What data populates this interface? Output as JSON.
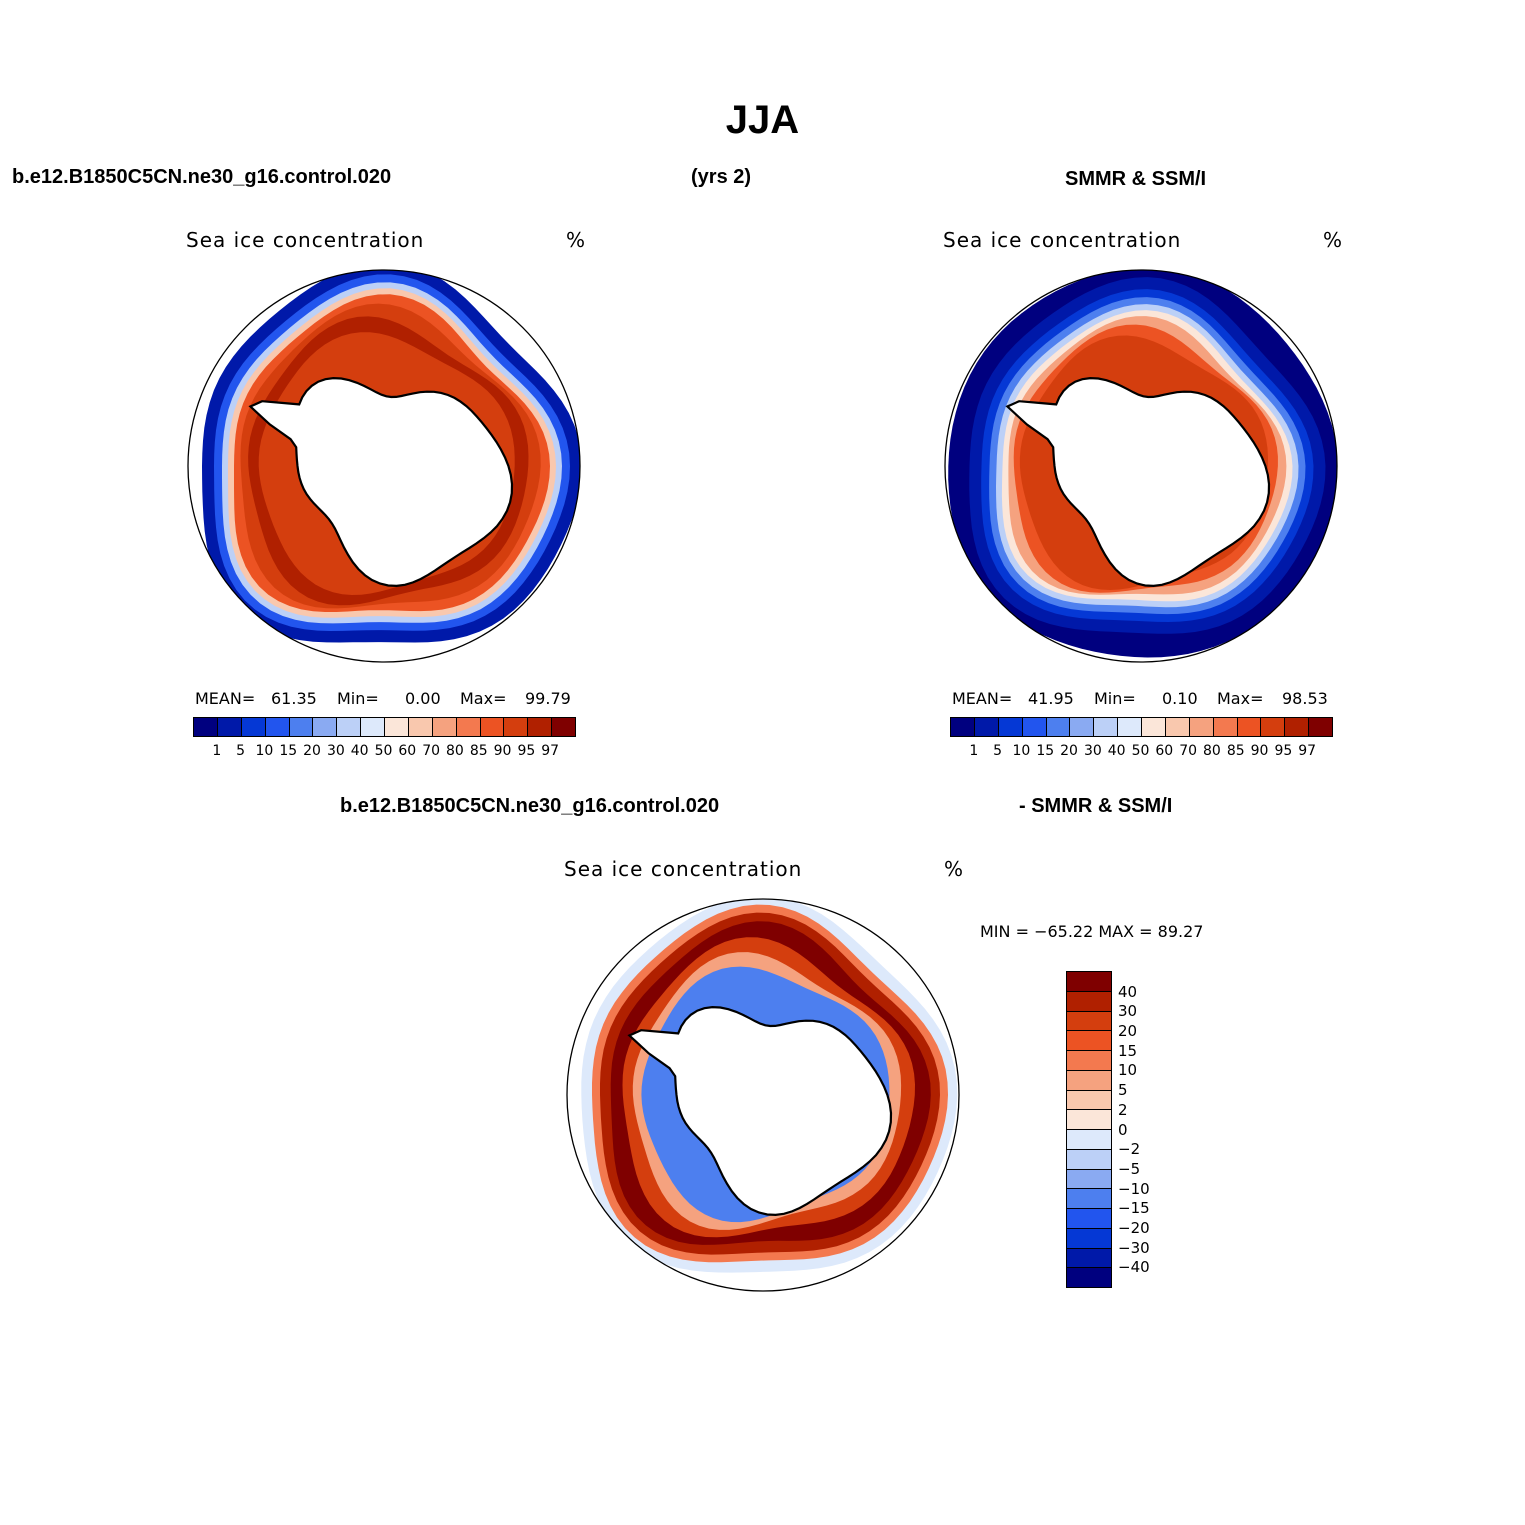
{
  "figure": {
    "title": "JJA",
    "case_label": "b.e12.B1850C5CN.ne30_g16.control.020",
    "years_label": "(yrs 2)",
    "obs_label": "SMMR & SSM/I",
    "diff_case_label": "b.e12.B1850C5CN.ne30_g16.control.020",
    "diff_obs_label": "- SMMR & SSM/I"
  },
  "chart_data": [
    {
      "type": "heatmap",
      "projection": "south-polar-stereographic",
      "title": "Sea ice concentration",
      "units": "%",
      "stats": {
        "mean_label": "MEAN=",
        "mean": "61.35",
        "min_label": "Min=",
        "min": "0.00",
        "max_label": "Max=",
        "max": "99.79"
      },
      "levels": [
        "1",
        "5",
        "10",
        "15",
        "20",
        "30",
        "40",
        "50",
        "60",
        "70",
        "80",
        "85",
        "90",
        "95",
        "97"
      ],
      "colors": [
        "#00007f",
        "#0019a9",
        "#0538d5",
        "#2255ee",
        "#4d7fef",
        "#8aaaf2",
        "#bcd0f7",
        "#dde9fb",
        "#fbe6d9",
        "#f9c8ae",
        "#f5a27f",
        "#f3794f",
        "#ec5323",
        "#d43e0e",
        "#b02000",
        "#7f0000"
      ],
      "ice_edge_ring": "model",
      "description": "Model ice band extends to outer edge; concentration mostly 85-97%"
    },
    {
      "type": "heatmap",
      "projection": "south-polar-stereographic",
      "title": "Sea ice concentration",
      "units": "%",
      "stats": {
        "mean_label": "MEAN=",
        "mean": "41.95",
        "min_label": "Min=",
        "min": "0.10",
        "max_label": "Max=",
        "max": "98.53"
      },
      "levels": [
        "1",
        "5",
        "10",
        "15",
        "20",
        "30",
        "40",
        "50",
        "60",
        "70",
        "80",
        "85",
        "90",
        "95",
        "97"
      ],
      "colors": [
        "#00007f",
        "#0019a9",
        "#0538d5",
        "#2255ee",
        "#4d7fef",
        "#8aaaf2",
        "#bcd0f7",
        "#dde9fb",
        "#fbe6d9",
        "#f9c8ae",
        "#f5a27f",
        "#f3794f",
        "#ec5323",
        "#d43e0e",
        "#b02000",
        "#7f0000"
      ],
      "ice_edge_ring": "obs",
      "description": "Observed ice band narrower; outer edge blue (low concentration)"
    },
    {
      "type": "heatmap",
      "projection": "south-polar-stereographic",
      "title": "Sea ice concentration",
      "units": "%",
      "minmax_label": "MIN = −65.22 MAX =  89.27",
      "min": -65.22,
      "max": 89.27,
      "levels": [
        "40",
        "30",
        "20",
        "15",
        "10",
        "5",
        "2",
        "0",
        "−2",
        "−5",
        "−10",
        "−15",
        "−20",
        "−30",
        "−40"
      ],
      "colors": [
        "#7f0000",
        "#b02000",
        "#d43e0e",
        "#ec5323",
        "#f3794f",
        "#f5a27f",
        "#f9c8ae",
        "#fbe6d9",
        "#dde9fb",
        "#bcd0f7",
        "#8aaaf2",
        "#4d7fef",
        "#2255ee",
        "#0538d5",
        "#0019a9",
        "#00007f"
      ],
      "description": "Difference model minus observations; mostly positive (red) in the outer ring"
    }
  ]
}
